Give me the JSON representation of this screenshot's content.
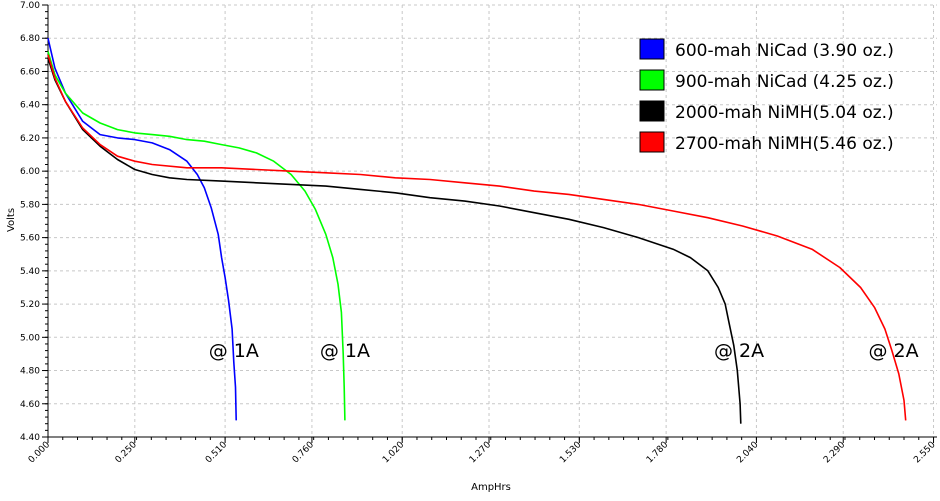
{
  "chart_data": {
    "type": "line",
    "xlabel": "AmpHrs",
    "ylabel": "Volts",
    "xlim": [
      0,
      2.56
    ],
    "ylim": [
      4.4,
      7.0
    ],
    "x_ticks": [
      "0.000",
      "0.250",
      "0.510",
      "0.760",
      "1.020",
      "1.270",
      "1.530",
      "1.780",
      "2.040",
      "2.290",
      "2.550"
    ],
    "y_ticks": [
      "4.40",
      "4.60",
      "4.80",
      "5.00",
      "5.20",
      "5.40",
      "5.60",
      "5.80",
      "6.00",
      "6.20",
      "6.40",
      "6.60",
      "6.80",
      "7.00"
    ],
    "grid": true,
    "legend_position": "top-right",
    "series": [
      {
        "name": "600-mah NiCad (3.90 oz.)",
        "color": "#0000ff",
        "points": [
          [
            0.0,
            6.8
          ],
          [
            0.02,
            6.62
          ],
          [
            0.05,
            6.47
          ],
          [
            0.1,
            6.3
          ],
          [
            0.15,
            6.22
          ],
          [
            0.2,
            6.2
          ],
          [
            0.25,
            6.19
          ],
          [
            0.3,
            6.17
          ],
          [
            0.35,
            6.13
          ],
          [
            0.4,
            6.06
          ],
          [
            0.43,
            5.98
          ],
          [
            0.45,
            5.9
          ],
          [
            0.47,
            5.78
          ],
          [
            0.49,
            5.62
          ],
          [
            0.5,
            5.48
          ],
          [
            0.51,
            5.36
          ],
          [
            0.52,
            5.22
          ],
          [
            0.53,
            5.05
          ],
          [
            0.535,
            4.85
          ],
          [
            0.54,
            4.7
          ],
          [
            0.542,
            4.5
          ]
        ]
      },
      {
        "name": "900-mah NiCad (4.25 oz.)",
        "color": "#00ff00",
        "points": [
          [
            0.0,
            6.72
          ],
          [
            0.02,
            6.58
          ],
          [
            0.05,
            6.47
          ],
          [
            0.1,
            6.35
          ],
          [
            0.15,
            6.29
          ],
          [
            0.2,
            6.25
          ],
          [
            0.25,
            6.23
          ],
          [
            0.3,
            6.22
          ],
          [
            0.35,
            6.21
          ],
          [
            0.4,
            6.19
          ],
          [
            0.45,
            6.18
          ],
          [
            0.5,
            6.16
          ],
          [
            0.55,
            6.14
          ],
          [
            0.6,
            6.11
          ],
          [
            0.65,
            6.06
          ],
          [
            0.7,
            5.98
          ],
          [
            0.74,
            5.88
          ],
          [
            0.77,
            5.77
          ],
          [
            0.8,
            5.62
          ],
          [
            0.82,
            5.48
          ],
          [
            0.835,
            5.32
          ],
          [
            0.845,
            5.15
          ],
          [
            0.85,
            4.9
          ],
          [
            0.853,
            4.7
          ],
          [
            0.855,
            4.5
          ]
        ]
      },
      {
        "name": "2000-mah NiMH(5.04 oz.)",
        "color": "#000000",
        "points": [
          [
            0.0,
            6.68
          ],
          [
            0.02,
            6.55
          ],
          [
            0.05,
            6.42
          ],
          [
            0.1,
            6.25
          ],
          [
            0.15,
            6.15
          ],
          [
            0.2,
            6.07
          ],
          [
            0.25,
            6.01
          ],
          [
            0.3,
            5.98
          ],
          [
            0.35,
            5.96
          ],
          [
            0.4,
            5.95
          ],
          [
            0.5,
            5.94
          ],
          [
            0.6,
            5.93
          ],
          [
            0.7,
            5.92
          ],
          [
            0.8,
            5.91
          ],
          [
            0.9,
            5.89
          ],
          [
            1.0,
            5.87
          ],
          [
            1.1,
            5.84
          ],
          [
            1.2,
            5.82
          ],
          [
            1.3,
            5.79
          ],
          [
            1.4,
            5.75
          ],
          [
            1.5,
            5.71
          ],
          [
            1.6,
            5.66
          ],
          [
            1.7,
            5.6
          ],
          [
            1.8,
            5.53
          ],
          [
            1.85,
            5.48
          ],
          [
            1.9,
            5.4
          ],
          [
            1.93,
            5.3
          ],
          [
            1.95,
            5.2
          ],
          [
            1.96,
            5.1
          ],
          [
            1.975,
            4.95
          ],
          [
            1.985,
            4.8
          ],
          [
            1.993,
            4.6
          ],
          [
            1.995,
            4.48
          ]
        ]
      },
      {
        "name": "2700-mah NiMH(5.46 oz.)",
        "color": "#ff0000",
        "points": [
          [
            0.0,
            6.7
          ],
          [
            0.02,
            6.56
          ],
          [
            0.05,
            6.42
          ],
          [
            0.1,
            6.26
          ],
          [
            0.15,
            6.16
          ],
          [
            0.2,
            6.09
          ],
          [
            0.25,
            6.06
          ],
          [
            0.3,
            6.04
          ],
          [
            0.4,
            6.02
          ],
          [
            0.5,
            6.02
          ],
          [
            0.6,
            6.01
          ],
          [
            0.7,
            6.0
          ],
          [
            0.8,
            5.99
          ],
          [
            0.9,
            5.98
          ],
          [
            1.0,
            5.96
          ],
          [
            1.1,
            5.95
          ],
          [
            1.2,
            5.93
          ],
          [
            1.3,
            5.91
          ],
          [
            1.4,
            5.88
          ],
          [
            1.5,
            5.86
          ],
          [
            1.6,
            5.83
          ],
          [
            1.7,
            5.8
          ],
          [
            1.8,
            5.76
          ],
          [
            1.9,
            5.72
          ],
          [
            2.0,
            5.67
          ],
          [
            2.1,
            5.61
          ],
          [
            2.2,
            5.53
          ],
          [
            2.28,
            5.42
          ],
          [
            2.34,
            5.3
          ],
          [
            2.38,
            5.18
          ],
          [
            2.41,
            5.05
          ],
          [
            2.43,
            4.92
          ],
          [
            2.45,
            4.78
          ],
          [
            2.465,
            4.62
          ],
          [
            2.47,
            4.5
          ]
        ]
      }
    ],
    "annotations": [
      {
        "text": "@ 1A",
        "x": 0.535,
        "y": 4.88
      },
      {
        "text": "@ 1A",
        "x": 0.855,
        "y": 4.88
      },
      {
        "text": "@ 2A",
        "x": 1.99,
        "y": 4.88
      },
      {
        "text": "@ 2A",
        "x": 2.435,
        "y": 4.88
      }
    ]
  }
}
